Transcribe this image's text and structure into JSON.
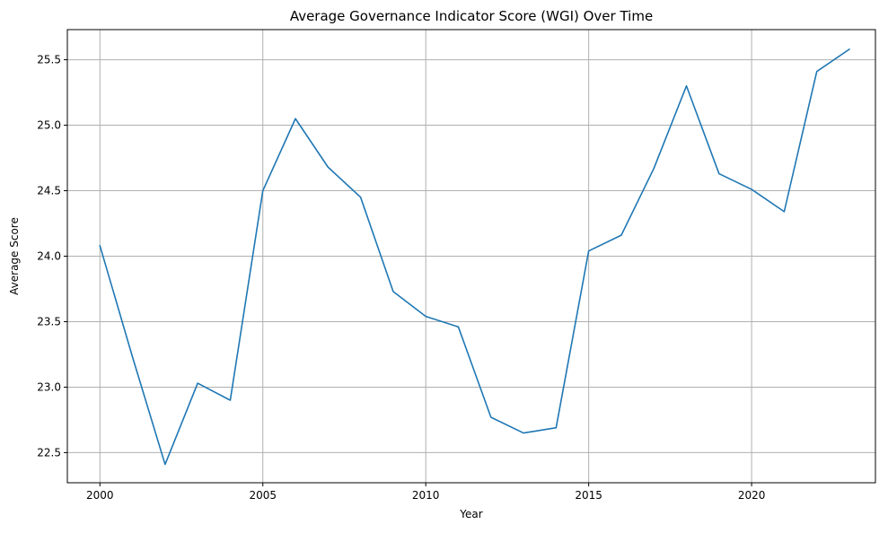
{
  "chart_data": {
    "type": "line",
    "title": "Average Governance Indicator Score (WGI) Over Time",
    "xlabel": "Year",
    "ylabel": "Average Score",
    "xlim": [
      1999.0,
      2023.8
    ],
    "ylim": [
      22.27,
      25.73
    ],
    "xticks": [
      2000,
      2005,
      2010,
      2015,
      2020
    ],
    "yticks": [
      22.5,
      23.0,
      23.5,
      24.0,
      24.5,
      25.0,
      25.5
    ],
    "grid": true,
    "colors": {
      "line": "#1f77b4",
      "grid": "#b0b0b0",
      "axes": "#000000"
    },
    "x": [
      2000,
      2001,
      2002,
      2003,
      2004,
      2005,
      2006,
      2007,
      2008,
      2009,
      2010,
      2011,
      2012,
      2013,
      2014,
      2015,
      2016,
      2017,
      2018,
      2019,
      2020,
      2021,
      2022,
      2023
    ],
    "series": [
      {
        "values": [
          24.08,
          23.23,
          22.41,
          23.03,
          22.9,
          24.5,
          25.05,
          24.68,
          24.45,
          23.73,
          23.54,
          23.46,
          22.77,
          22.65,
          22.69,
          24.04,
          24.16,
          24.67,
          25.3,
          24.63,
          24.51,
          24.34,
          25.41,
          25.58
        ]
      }
    ]
  }
}
